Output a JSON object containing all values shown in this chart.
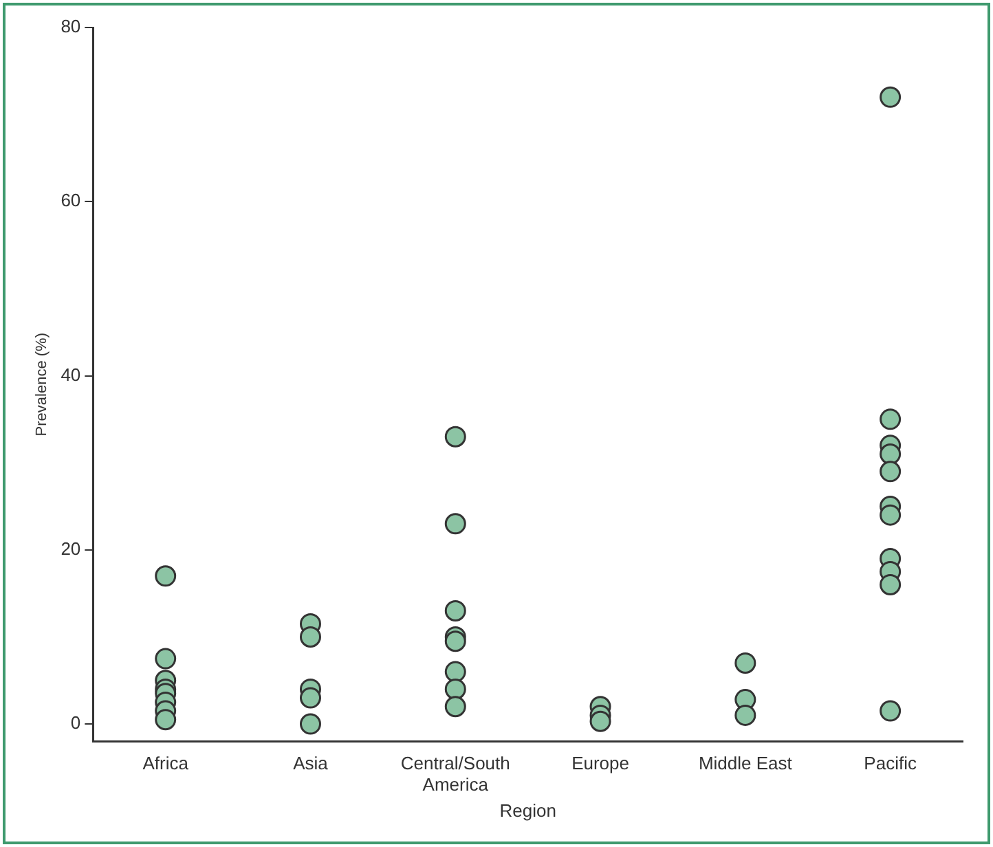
{
  "chart_data": {
    "type": "scatter",
    "xlabel": "Region",
    "ylabel": "Prevalence (%)",
    "categories": [
      "Africa",
      "Asia",
      "Central/South America",
      "Europe",
      "Middle East",
      "Pacific"
    ],
    "series": [
      {
        "color": "#8cc4a4",
        "x": [
          "Africa",
          "Africa",
          "Africa",
          "Africa",
          "Africa",
          "Africa",
          "Africa",
          "Africa",
          "Asia",
          "Asia",
          "Asia",
          "Asia",
          "Asia",
          "Central/South America",
          "Central/South America",
          "Central/South America",
          "Central/South America",
          "Central/South America",
          "Central/South America",
          "Central/South America",
          "Central/South America",
          "Europe",
          "Europe",
          "Europe",
          "Middle East",
          "Middle East",
          "Middle East",
          "Pacific",
          "Pacific",
          "Pacific",
          "Pacific",
          "Pacific",
          "Pacific",
          "Pacific",
          "Pacific",
          "Pacific",
          "Pacific",
          "Pacific"
        ],
        "values": [
          17,
          7.5,
          5,
          4,
          3.5,
          2.5,
          1.5,
          0.5,
          11.5,
          10,
          4,
          3,
          0,
          33,
          23,
          13,
          10,
          9.5,
          6,
          4,
          2,
          2,
          1,
          0.3,
          7,
          2.8,
          1,
          72,
          35,
          32,
          31,
          29,
          25,
          24,
          19,
          17.5,
          16,
          1.5
        ]
      }
    ],
    "ylim": [
      -2,
      80
    ],
    "yticks": [
      0,
      20,
      40,
      60,
      80
    ],
    "grid": false,
    "legend": false,
    "marker": "circle"
  }
}
